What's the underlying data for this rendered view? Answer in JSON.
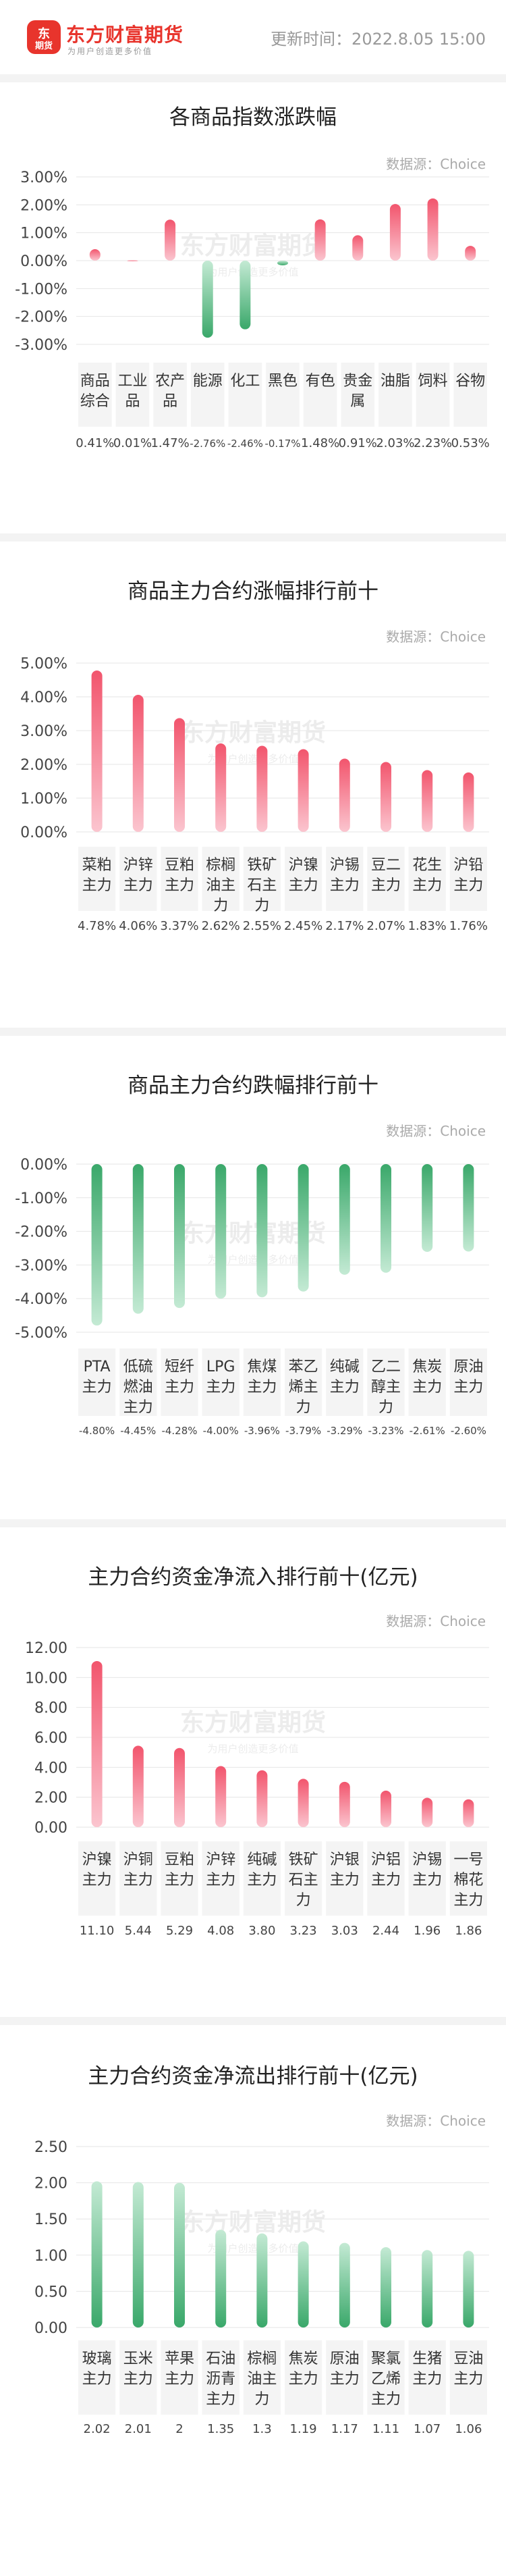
{
  "header": {
    "logo_glyph": "东",
    "logo_sub": "期货",
    "brand": "东方财富期货",
    "slogan": "为用户创造更多价值",
    "update_time": "更新时间：2022.8.05 15:00"
  },
  "watermark": {
    "brand": "东方财富期货",
    "slogan": "为用户创造更多价值"
  },
  "colors": {
    "up": "#f2556d",
    "down": "#3aa86a",
    "grid": "#e6e6e6",
    "label_bg": "#f4f4f4"
  },
  "sections": [
    {
      "title": "各商品指数涨跌幅",
      "source": "数据源：Choice"
    },
    {
      "title": "商品主力合约涨幅排行前十",
      "source": "数据源：Choice"
    },
    {
      "title": "商品主力合约跌幅排行前十",
      "source": "数据源：Choice"
    },
    {
      "title": "主力合约资金净流入排行前十(亿元)",
      "source": "数据源：Choice"
    },
    {
      "title": "主力合约资金净流出排行前十(亿元)",
      "source": "数据源：Choice"
    }
  ],
  "chart_data": [
    {
      "type": "bar",
      "title": "各商品指数涨跌幅",
      "categories": [
        "商品综合",
        "工业品",
        "农产品",
        "能源",
        "化工",
        "黑色",
        "有色",
        "贵金属",
        "油脂",
        "饲料",
        "谷物"
      ],
      "values": [
        0.41,
        0.01,
        1.47,
        -2.76,
        -2.46,
        -0.17,
        1.48,
        0.91,
        2.03,
        2.23,
        0.53
      ],
      "value_labels": [
        "0.41%",
        "0.01%",
        "1.47%",
        "-2.76%",
        "-2.46%",
        "-0.17%",
        "1.48%",
        "0.91%",
        "2.03%",
        "2.23%",
        "0.53%"
      ],
      "yticks": [
        "3.00%",
        "2.00%",
        "1.00%",
        "0.00%",
        "-1.00%",
        "-2.00%",
        "-3.00%"
      ],
      "ylim": [
        -3,
        3
      ],
      "ystep": 1
    },
    {
      "type": "bar",
      "title": "商品主力合约涨幅排行前十",
      "categories": [
        "菜粕主力",
        "沪锌主力",
        "豆粕主力",
        "棕榈油主力",
        "铁矿石主力",
        "沪镍主力",
        "沪锡主力",
        "豆二主力",
        "花生主力",
        "沪铅主力"
      ],
      "values": [
        4.78,
        4.06,
        3.37,
        2.62,
        2.55,
        2.45,
        2.17,
        2.07,
        1.83,
        1.76
      ],
      "value_labels": [
        "4.78%",
        "4.06%",
        "3.37%",
        "2.62%",
        "2.55%",
        "2.45%",
        "2.17%",
        "2.07%",
        "1.83%",
        "1.76%"
      ],
      "yticks": [
        "5.00%",
        "4.00%",
        "3.00%",
        "2.00%",
        "1.00%",
        "0.00%"
      ],
      "ylim": [
        0,
        5
      ],
      "ystep": 1
    },
    {
      "type": "bar",
      "title": "商品主力合约跌幅排行前十",
      "categories": [
        "PTA主力",
        "低硫燃油主力",
        "短纤主力",
        "LPG主力",
        "焦煤主力",
        "苯乙烯主力",
        "纯碱主力",
        "乙二醇主力",
        "焦炭主力",
        "原油主力"
      ],
      "values": [
        -4.8,
        -4.45,
        -4.28,
        -4.0,
        -3.96,
        -3.79,
        -3.29,
        -3.23,
        -2.61,
        -2.6
      ],
      "value_labels": [
        "-4.80%",
        "-4.45%",
        "-4.28%",
        "-4.00%",
        "-3.96%",
        "-3.79%",
        "-3.29%",
        "-3.23%",
        "-2.61%",
        "-2.60%"
      ],
      "yticks": [
        "0.00%",
        "-1.00%",
        "-2.00%",
        "-3.00%",
        "-4.00%",
        "-5.00%"
      ],
      "ylim": [
        -5,
        0
      ],
      "ystep": 1
    },
    {
      "type": "bar",
      "title": "主力合约资金净流入排行前十(亿元)",
      "categories": [
        "沪镍主力",
        "沪铜主力",
        "豆粕主力",
        "沪锌主力",
        "纯碱主力",
        "铁矿石主力",
        "沪银主力",
        "沪铝主力",
        "沪锡主力",
        "一号棉花主力"
      ],
      "values": [
        11.1,
        5.44,
        5.29,
        4.08,
        3.8,
        3.23,
        3.03,
        2.44,
        1.96,
        1.86
      ],
      "value_labels": [
        "11.10",
        "5.44",
        "5.29",
        "4.08",
        "3.80",
        "3.23",
        "3.03",
        "2.44",
        "1.96",
        "1.86"
      ],
      "yticks": [
        "12.00",
        "10.00",
        "8.00",
        "6.00",
        "4.00",
        "2.00",
        "0.00"
      ],
      "ylim": [
        0,
        12
      ],
      "ystep": 2
    },
    {
      "type": "bar",
      "title": "主力合约资金净流出排行前十(亿元)",
      "categories": [
        "玻璃主力",
        "玉米主力",
        "苹果主力",
        "石油沥青主力",
        "棕榈油主力",
        "焦炭主力",
        "原油主力",
        "聚氯乙烯主力",
        "生猪主力",
        "豆油主力"
      ],
      "values": [
        2.02,
        2.01,
        2,
        1.35,
        1.3,
        1.19,
        1.17,
        1.11,
        1.07,
        1.06
      ],
      "value_labels": [
        "2.02",
        "2.01",
        "2",
        "1.35",
        "1.3",
        "1.19",
        "1.17",
        "1.11",
        "1.07",
        "1.06"
      ],
      "yticks": [
        "2.50",
        "2.00",
        "1.50",
        "1.00",
        "0.50",
        "0.00"
      ],
      "ylim": [
        0,
        2.5
      ],
      "ystep": 0.5
    }
  ]
}
